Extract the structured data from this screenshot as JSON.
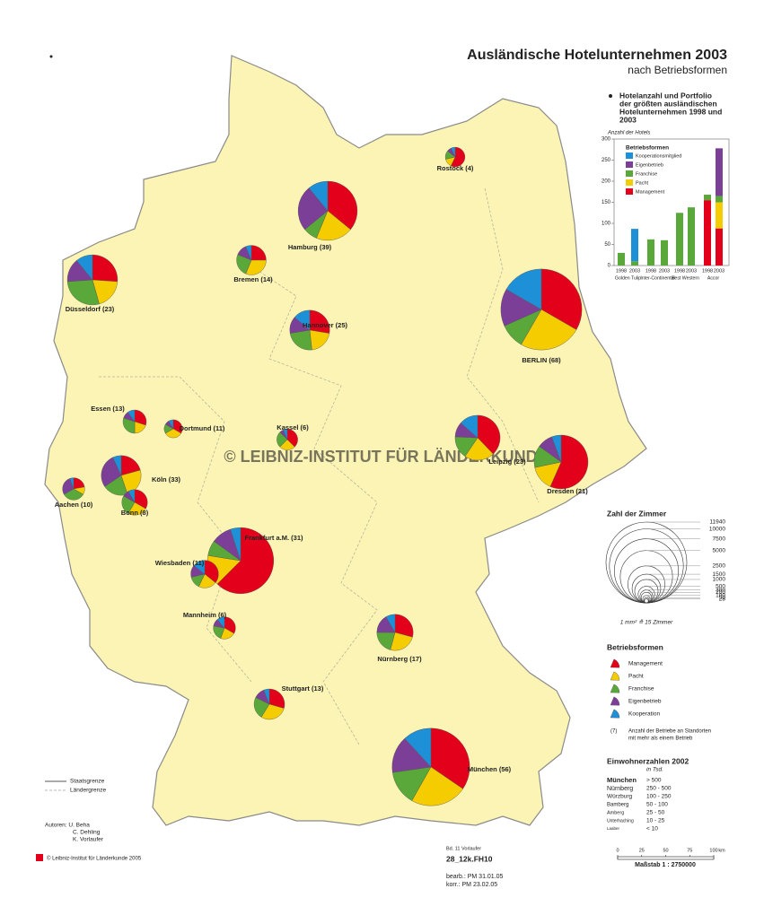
{
  "header": {
    "title": "Ausländische Hotelunternehmen 2003",
    "subtitle": "nach Betriebsformen"
  },
  "chart_data": {
    "type": "bar",
    "stacked": true,
    "heading_lines": [
      "Hotelanzahl und Portfolio",
      "der größten ausländischen",
      "Hotelunternehmen 1998 und",
      "2003"
    ],
    "y_label": "Anzahl der Hotels",
    "legend_title": "Betriebsformen",
    "categories": [
      "1998",
      "2003",
      "1998",
      "2003",
      "1998",
      "2003",
      "1998",
      "2003"
    ],
    "groups": [
      "Golden Tulip",
      "Inter-Continental",
      "Best Western",
      "Accor"
    ],
    "series": [
      {
        "name": "Kooperationsmitglied",
        "color": "#1e90d8",
        "values": [
          null,
          77,
          null,
          null,
          null,
          null,
          null,
          null
        ]
      },
      {
        "name": "Eigenbetrieb",
        "color": "#7b3f98",
        "values": [
          null,
          null,
          null,
          null,
          null,
          null,
          null,
          113
        ]
      },
      {
        "name": "Franchise",
        "color": "#5aa83a",
        "values": [
          30,
          10,
          62,
          60,
          125,
          138,
          13,
          15
        ]
      },
      {
        "name": "Pacht",
        "color": "#f5cc00",
        "values": [
          null,
          null,
          null,
          null,
          null,
          null,
          null,
          62
        ]
      },
      {
        "name": "Management",
        "color": "#e3001b",
        "values": [
          null,
          null,
          null,
          null,
          null,
          null,
          155,
          88
        ]
      }
    ],
    "ylim": [
      0,
      300
    ],
    "yticks": [
      0,
      50,
      100,
      150,
      200,
      250,
      300
    ]
  },
  "map": {
    "types": [
      {
        "name": "Management",
        "color": "#e3001b"
      },
      {
        "name": "Pacht",
        "color": "#f5cc00"
      },
      {
        "name": "Franchise",
        "color": "#5aa83a"
      },
      {
        "name": "Eigenbetrieb",
        "color": "#7b3f98"
      },
      {
        "name": "Kooperation",
        "color": "#1e90d8"
      }
    ],
    "cities": [
      {
        "label": "Hamburg (39)",
        "values": [
          2300,
          1300,
          500,
          1600,
          700
        ]
      },
      {
        "label": "BERLIN (68)",
        "values": [
          4000,
          3000,
          1200,
          1800,
          2000
        ]
      },
      {
        "label": "München (56)",
        "values": [
          3800,
          2600,
          1600,
          1700,
          1300
        ]
      },
      {
        "label": "Frankfurt a.M. (31)",
        "values": [
          5000,
          1200,
          600,
          800,
          400
        ]
      },
      {
        "label": "Düsseldorf (23)",
        "values": [
          1200,
          900,
          1300,
          700,
          500
        ]
      },
      {
        "label": "Köln (33)",
        "values": [
          600,
          700,
          600,
          800,
          200
        ]
      },
      {
        "label": "Leipzig (23)",
        "values": [
          1400,
          800,
          600,
          400,
          500
        ]
      },
      {
        "label": "Dresden (21)",
        "values": [
          3000,
          800,
          700,
          500,
          300
        ]
      },
      {
        "label": "Hannover (25)",
        "values": [
          800,
          600,
          700,
          400,
          400
        ]
      },
      {
        "label": "Stuttgart (13)",
        "values": [
          500,
          500,
          400,
          200,
          100
        ]
      },
      {
        "label": "Nürnberg (17)",
        "values": [
          700,
          600,
          500,
          400,
          200
        ]
      },
      {
        "label": "Bremen (14)",
        "values": [
          400,
          500,
          400,
          200,
          100
        ]
      },
      {
        "label": "Essen (13)",
        "values": [
          300,
          200,
          300,
          100,
          100
        ]
      },
      {
        "label": "Dortmund (11)",
        "values": [
          200,
          200,
          100,
          50,
          50
        ]
      },
      {
        "label": "Rostock (4)",
        "values": [
          400,
          100,
          100,
          50,
          50
        ]
      },
      {
        "label": "Wiesbaden (11)",
        "values": [
          500,
          300,
          200,
          200,
          200
        ]
      },
      {
        "label": "Mannheim (6)",
        "values": [
          300,
          200,
          200,
          100,
          100
        ]
      },
      {
        "label": "Kassel (6)",
        "values": [
          300,
          200,
          200,
          50,
          50
        ]
      },
      {
        "label": "Aachen (10)",
        "values": [
          200,
          100,
          300,
          250,
          50
        ]
      },
      {
        "label": "Bonn (8)",
        "values": [
          400,
          300,
          300,
          100,
          100
        ]
      }
    ]
  },
  "rooms_legend": {
    "title": "Zahl der Zimmer",
    "values": [
      11940,
      10000,
      7500,
      5000,
      2500,
      1500,
      1000,
      500,
      300,
      200,
      100,
      50,
      28
    ],
    "note": "1 mm² ≙ 15 Zimmer"
  },
  "types_legend": {
    "title": "Betriebsformen",
    "note_marker": "(7)",
    "note_lines": [
      "Anzahl der Betriebe an Standorten",
      "mit mehr als einem Betrieb"
    ]
  },
  "population": {
    "title": "Einwohnerzahlen 2002",
    "unit": "in Tsd.",
    "rows": [
      [
        "München",
        "> 500"
      ],
      [
        "Nürnberg",
        "250 - 500"
      ],
      [
        "Würzburg",
        "100 - 250"
      ],
      [
        "Bamberg",
        "50 - 100"
      ],
      [
        "Amberg",
        "25 - 50"
      ],
      [
        "Unterhaching",
        "10 - 25"
      ],
      [
        "Laaber",
        "< 10"
      ]
    ]
  },
  "scale": {
    "ticks": [
      0,
      25,
      50,
      75,
      100
    ],
    "unit": "km",
    "label": "Maßstab 1 : 2750000"
  },
  "borders": [
    "Staatsgrenze",
    "Ländergrenze"
  ],
  "credits": {
    "authors": [
      "Autoren: U. Beha",
      "C. Dehling",
      "K. Vorlaufer"
    ],
    "copyright": "© Leibniz-Institut für Länderkunde 2005",
    "volume": "Bd. 11 Vorlaufer",
    "file": "28_12k.FH10",
    "edited": "bearb.: PM 31.01.05",
    "corrected": "korr.: PM 23.02.05"
  },
  "watermark": "© LEIBNIZ-INSTITUT FÜR LÄNDERKUNDE"
}
